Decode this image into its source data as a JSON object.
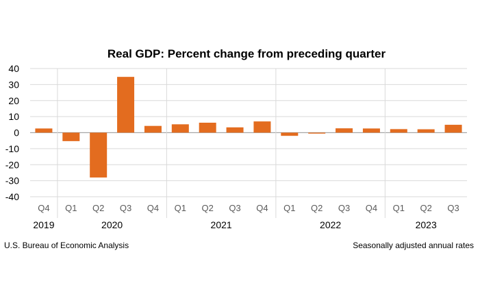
{
  "chart_data": {
    "type": "bar",
    "title": "Real GDP:  Percent change from preceding quarter",
    "categories": [
      "Q4",
      "Q1",
      "Q2",
      "Q3",
      "Q4",
      "Q1",
      "Q2",
      "Q3",
      "Q4",
      "Q1",
      "Q2",
      "Q3",
      "Q4",
      "Q1",
      "Q2",
      "Q3"
    ],
    "years": [
      {
        "label": "2019",
        "start": 0,
        "end": 0
      },
      {
        "label": "2020",
        "start": 1,
        "end": 4
      },
      {
        "label": "2021",
        "start": 5,
        "end": 8
      },
      {
        "label": "2022",
        "start": 9,
        "end": 12
      },
      {
        "label": "2023",
        "start": 13,
        "end": 15
      }
    ],
    "values": [
      2.6,
      -5.3,
      -28.0,
      34.8,
      4.2,
      5.2,
      6.2,
      3.3,
      7.0,
      -2.0,
      -0.6,
      2.7,
      2.6,
      2.2,
      2.1,
      4.9
    ],
    "ylim": [
      -40,
      40
    ],
    "yticks": [
      -40,
      -30,
      -20,
      -10,
      0,
      10,
      20,
      30,
      40
    ],
    "grid": true,
    "bar_color": "#E36C1F",
    "source": "U.S. Bureau of Economic Analysis",
    "note": "Seasonally adjusted annual rates"
  }
}
